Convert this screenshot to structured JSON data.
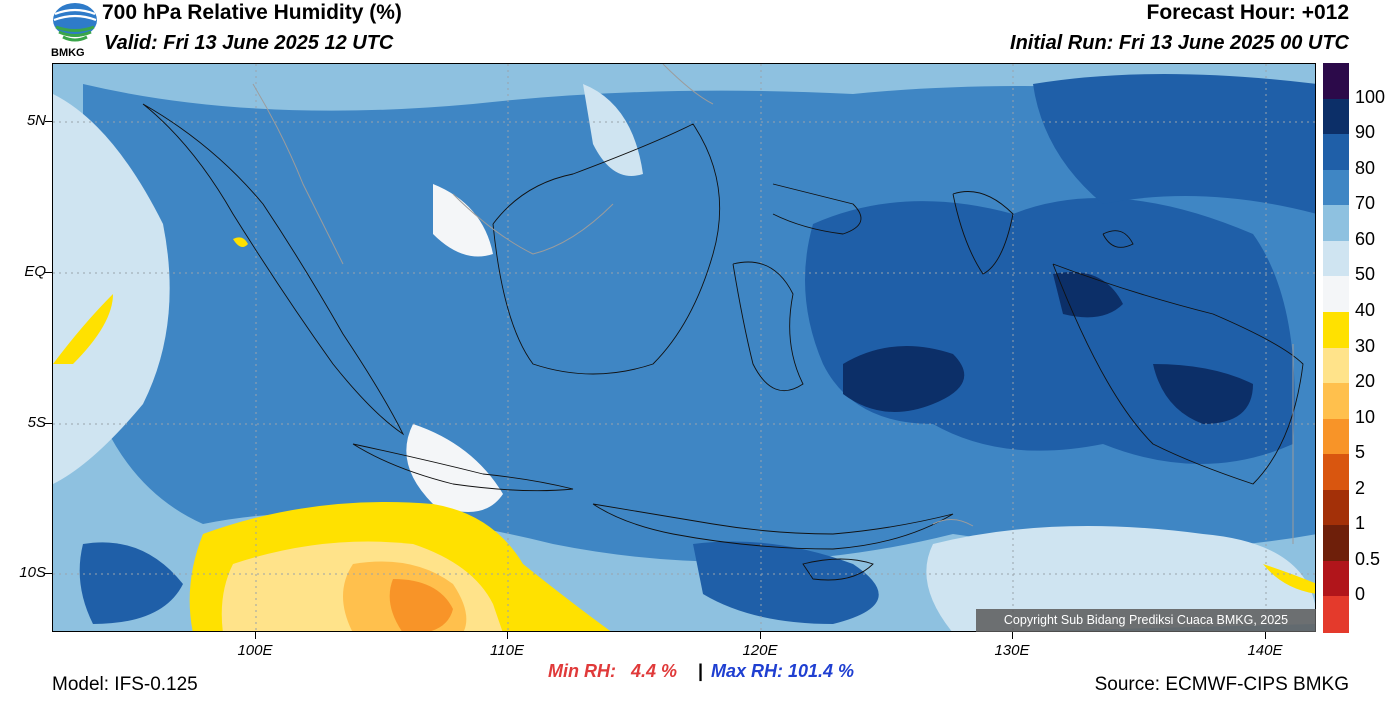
{
  "header": {
    "title": "700 hPa Relative Humidity (%)",
    "valid": "Valid: Fri 13 June 2025 12 UTC",
    "forecast_hour": "Forecast Hour: +012",
    "initial_run": "Initial Run: Fri 13 June 2025 00 UTC",
    "logo_text": "BMKG"
  },
  "axes": {
    "lat_labels": [
      "5N",
      "EQ",
      "5S",
      "10S"
    ],
    "lon_labels": [
      "100E",
      "110E",
      "120E",
      "130E",
      "140E"
    ]
  },
  "colorbar": {
    "labels": [
      "100",
      "90",
      "80",
      "70",
      "60",
      "50",
      "40",
      "30",
      "20",
      "10",
      "5",
      "2",
      "1",
      "0.5",
      "0"
    ],
    "colors": [
      "#2c0a4a",
      "#0c2f68",
      "#1f5fa8",
      "#3f86c4",
      "#8ec1e0",
      "#cfe4f1",
      "#f4f6f8",
      "#ffe100",
      "#ffe38a",
      "#ffc04d",
      "#f89428",
      "#d9560f",
      "#a33008",
      "#6e1f0a",
      "#b1151b",
      "#e43a2c"
    ]
  },
  "stats": {
    "min_rh": "Min RH:   4.4 %",
    "separator": "|",
    "max_rh": "Max RH: 101.4 %"
  },
  "footer": {
    "model": "Model: IFS-0.125",
    "source": "Source: ECMWF-CIPS BMKG",
    "copyright": "Copyright Sub Bidang Prediksi Cuaca BMKG, 2025"
  }
}
